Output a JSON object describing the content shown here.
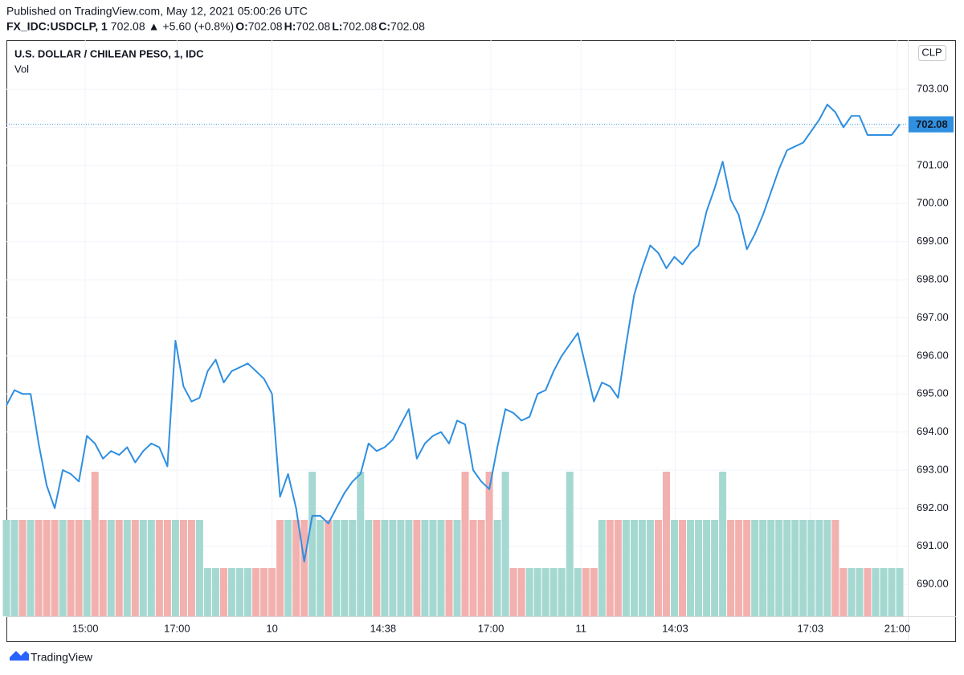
{
  "header": {
    "published": "Published on TradingView.com, May 12, 2021 05:00:26 UTC",
    "symbol": "FX_IDC:USDCLP, 1",
    "last": "702.08",
    "arrow": "▲",
    "change": "+5.60 (+0.8%)",
    "ohlc": [
      {
        "label": "O:",
        "value": "702.08"
      },
      {
        "label": "H:",
        "value": "702.08"
      },
      {
        "label": "L:",
        "value": "702.08"
      },
      {
        "label": "C:",
        "value": "702.08"
      }
    ]
  },
  "footer": {
    "brand": "TradingView"
  },
  "chart_data": {
    "type": "line",
    "title": "U.S. DOLLAR / CHILEAN PESO, 1, IDC",
    "subtitle": "Vol",
    "currency": "CLP",
    "color": "#2f8fe0",
    "last_price": 702.08,
    "grid": true,
    "xlim": [
      0,
      111
    ],
    "ylim": [
      689.16,
      704.29
    ],
    "xticks": [
      {
        "value": 9.8,
        "label": "15:00"
      },
      {
        "value": 21.2,
        "label": "17:00"
      },
      {
        "value": 33.0,
        "label": "10"
      },
      {
        "value": 46.8,
        "label": "14:38"
      },
      {
        "value": 60.2,
        "label": "17:00"
      },
      {
        "value": 71.4,
        "label": "11"
      },
      {
        "value": 83.1,
        "label": "14:03"
      },
      {
        "value": 99.9,
        "label": "17:03"
      },
      {
        "value": 110.7,
        "label": "21:00"
      }
    ],
    "yticks": [
      {
        "value": 690,
        "label": "690.00"
      },
      {
        "value": 691,
        "label": "691.00"
      },
      {
        "value": 692,
        "label": "692.00"
      },
      {
        "value": 693,
        "label": "693.00"
      },
      {
        "value": 694,
        "label": "694.00"
      },
      {
        "value": 695,
        "label": "695.00"
      },
      {
        "value": 696,
        "label": "696.00"
      },
      {
        "value": 697,
        "label": "697.00"
      },
      {
        "value": 698,
        "label": "698.00"
      },
      {
        "value": 699,
        "label": "699.00"
      },
      {
        "value": 700,
        "label": "700.00"
      },
      {
        "value": 701,
        "label": "701.00"
      },
      {
        "value": 702,
        "label": "702.00"
      },
      {
        "value": 703,
        "label": "703.00"
      }
    ],
    "values": [
      694.7,
      695.1,
      695.0,
      695.0,
      693.7,
      692.6,
      692.0,
      693.0,
      692.9,
      692.7,
      693.9,
      693.7,
      693.3,
      693.5,
      693.4,
      693.6,
      693.2,
      693.5,
      693.7,
      693.6,
      693.1,
      696.4,
      695.2,
      694.8,
      694.9,
      695.6,
      695.9,
      695.3,
      695.6,
      695.7,
      695.8,
      695.6,
      695.4,
      695.0,
      692.3,
      692.9,
      692.0,
      690.6,
      691.8,
      691.8,
      691.6,
      692.0,
      692.4,
      692.7,
      692.9,
      693.7,
      693.5,
      693.6,
      693.8,
      694.2,
      694.6,
      693.3,
      693.7,
      693.9,
      694.0,
      693.7,
      694.3,
      694.2,
      693.0,
      692.7,
      692.5,
      693.6,
      694.6,
      694.5,
      694.3,
      694.4,
      695.0,
      695.1,
      695.6,
      696.0,
      696.3,
      696.6,
      695.7,
      694.8,
      695.3,
      695.2,
      694.9,
      696.3,
      697.6,
      698.3,
      698.9,
      698.7,
      698.3,
      698.6,
      698.4,
      698.7,
      698.9,
      699.8,
      700.4,
      701.1,
      700.1,
      699.7,
      698.8,
      699.2,
      699.7,
      700.3,
      700.9,
      701.4,
      701.5,
      701.6,
      701.9,
      702.2,
      702.6,
      702.4,
      702.0,
      702.3,
      702.3,
      701.8,
      701.8,
      701.8,
      701.8,
      702.08
    ],
    "volume": {
      "ylim": [
        0,
        6
      ],
      "up_color": "#a6d8d2",
      "down_color": "#f2b1ae",
      "values": [
        3,
        3,
        3,
        3,
        3,
        3,
        3,
        3,
        3,
        3,
        3,
        4.5,
        3,
        3,
        3,
        3,
        3,
        3,
        3,
        3,
        3,
        3,
        3,
        3,
        3,
        1.5,
        1.5,
        1.5,
        1.5,
        1.5,
        1.5,
        1.5,
        1.5,
        1.5,
        3,
        3,
        3,
        3,
        4.5,
        3,
        3,
        3,
        3,
        3,
        4.5,
        3,
        3,
        3,
        3,
        3,
        3,
        3,
        3,
        3,
        3,
        3,
        3,
        4.5,
        3,
        3,
        4.5,
        3,
        4.5,
        1.5,
        1.5,
        1.5,
        1.5,
        1.5,
        1.5,
        1.5,
        4.5,
        1.5,
        1.5,
        1.5,
        3,
        3,
        3,
        3,
        3,
        3,
        3,
        3,
        4.5,
        3,
        3,
        3,
        3,
        3,
        3,
        4.5,
        3,
        3,
        3,
        3,
        3,
        3,
        3,
        3,
        3,
        3,
        3,
        3,
        3,
        3,
        1.5,
        1.5,
        1.5,
        1.5,
        1.5,
        1.5,
        1.5,
        1.5
      ]
    }
  }
}
